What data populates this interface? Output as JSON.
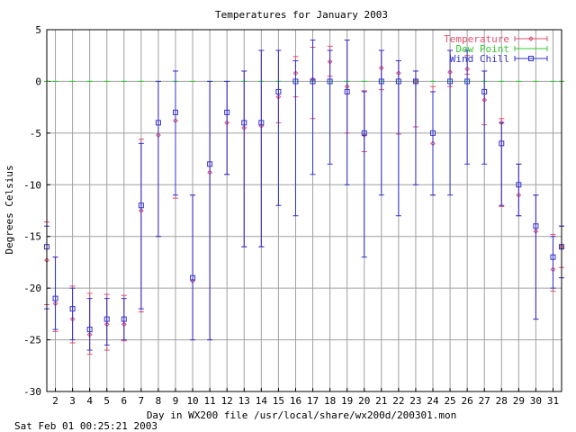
{
  "chart_data": {
    "type": "errorbar",
    "title": "Temperatures for January 2003",
    "xlabel": "Day in WX200 file /usr/local/share/wx200d/200301.mon",
    "ylabel": "Degrees Celsius",
    "footer": "Sat Feb 01 00:25:21 2003",
    "xlim": [
      1.5,
      31.5
    ],
    "ylim": [
      -30,
      5
    ],
    "x_ticks": [
      2,
      3,
      4,
      5,
      6,
      7,
      8,
      9,
      10,
      11,
      12,
      13,
      14,
      15,
      16,
      17,
      18,
      19,
      20,
      21,
      22,
      23,
      24,
      25,
      26,
      27,
      28,
      29,
      30,
      31
    ],
    "y_ticks": [
      5,
      0,
      -5,
      -10,
      -15,
      -20,
      -25,
      -30
    ],
    "grid": true,
    "legend_position": "top-right",
    "colors": {
      "temperature": "#e0506e",
      "dew_point": "#33cc33",
      "wind_chill": "#3333cc",
      "grid": "#a0a0a0"
    },
    "series": [
      {
        "name": "Temperature",
        "x": [
          1.5,
          2,
          3,
          4,
          5,
          6,
          7,
          8,
          9,
          10,
          11,
          12,
          13,
          14,
          15,
          16,
          17,
          18,
          19,
          20,
          21,
          22,
          23,
          24,
          25,
          26,
          27,
          28,
          29,
          30,
          31,
          31.5
        ],
        "low": [
          -21.6,
          -24.2,
          -25.3,
          -26.4,
          -26.0,
          -25.1,
          -22.3,
          -15.0,
          -11.3,
          -25.0,
          -25.0,
          -9.0,
          -16.0,
          -16.0,
          -4.0,
          -1.5,
          -3.6,
          0.5,
          -5.0,
          -6.8,
          -0.8,
          -5.1,
          -4.4,
          -11.0,
          -0.5,
          0.7,
          -4.2,
          -12.1,
          -13.0,
          -23.0,
          -20.3,
          -18.0
        ],
        "mid": [
          -17.3,
          -21.5,
          -23.0,
          -24.5,
          -23.5,
          -23.5,
          -12.5,
          -5.2,
          -3.8,
          -19.3,
          -8.8,
          -4.0,
          -4.5,
          -4.3,
          -1.5,
          0.8,
          0.2,
          1.9,
          -0.5,
          -5.2,
          1.3,
          0.8,
          0.0,
          -6.0,
          0.9,
          1.2,
          -1.8,
          -4.0,
          -11.0,
          -14.5,
          -18.2,
          -16.0
        ],
        "high": [
          -13.6,
          -17.0,
          -19.8,
          -20.5,
          -20.6,
          -20.7,
          -5.6,
          0.0,
          1.0,
          -11.0,
          0.0,
          0.0,
          1.0,
          3.0,
          3.0,
          2.4,
          3.3,
          3.4,
          4.0,
          -0.9,
          3.0,
          2.0,
          1.0,
          -0.5,
          3.0,
          2.5,
          1.0,
          -3.6,
          -8.0,
          -11.0,
          -14.8,
          -14.0
        ]
      },
      {
        "name": "Dew Point",
        "x": [
          1.5,
          2,
          3,
          4,
          5,
          6,
          7,
          8,
          9,
          10,
          11,
          12,
          13,
          14,
          15,
          16,
          17,
          18,
          19,
          20,
          21,
          22,
          23,
          24,
          25,
          26,
          27,
          28,
          29,
          30,
          31,
          31.5
        ],
        "low": [
          0,
          0,
          0,
          0,
          0,
          0,
          0,
          0,
          0,
          0,
          0,
          0,
          0,
          0,
          0,
          0,
          0,
          0,
          0,
          0,
          0,
          0,
          0,
          0,
          0,
          0,
          0,
          0,
          0,
          0,
          0,
          0
        ],
        "mid": [
          0,
          0,
          0,
          0,
          0,
          0,
          0,
          0,
          0,
          0,
          0,
          0,
          0,
          0,
          0,
          0,
          0,
          0,
          0,
          0,
          0,
          0,
          0,
          0,
          0,
          0,
          0,
          0,
          0,
          0,
          0,
          0
        ],
        "high": [
          0,
          0,
          0,
          0,
          0,
          0,
          0,
          0,
          0,
          0,
          0,
          0,
          0,
          0,
          0,
          0,
          0,
          0,
          0,
          0,
          0,
          0,
          0,
          0,
          0,
          0,
          0,
          0,
          0,
          0,
          0,
          0
        ]
      },
      {
        "name": "Wind Chill",
        "x": [
          1.5,
          2,
          3,
          4,
          5,
          6,
          7,
          8,
          9,
          10,
          11,
          12,
          13,
          14,
          15,
          16,
          17,
          18,
          19,
          20,
          21,
          22,
          23,
          24,
          25,
          26,
          27,
          28,
          29,
          30,
          31,
          31.5
        ],
        "low": [
          -22.0,
          -24.0,
          -25.0,
          -26.0,
          -25.5,
          -25.0,
          -22.0,
          -15.0,
          -11.0,
          -25.0,
          -25.0,
          -9.0,
          -16.0,
          -16.0,
          -12.0,
          -13.0,
          -9.0,
          -8.0,
          -10.0,
          -17.0,
          -11.0,
          -13.0,
          -10.0,
          -11.0,
          -11.0,
          -8.0,
          -8.0,
          -12.0,
          -13.0,
          -23.0,
          -20.0,
          -19.0
        ],
        "mid": [
          -16.0,
          -21.0,
          -22.0,
          -24.0,
          -23.0,
          -23.0,
          -12.0,
          -4.0,
          -3.0,
          -19.0,
          -8.0,
          -3.0,
          -4.0,
          -4.0,
          -1.0,
          0.0,
          0.0,
          0.0,
          -1.0,
          -5.0,
          0.0,
          0.0,
          0.0,
          -5.0,
          0.0,
          0.0,
          -1.0,
          -6.0,
          -10.0,
          -14.0,
          -17.0,
          -16.0
        ],
        "high": [
          -14.0,
          -17.0,
          -20.0,
          -21.0,
          -21.0,
          -21.0,
          -6.0,
          0.0,
          1.0,
          -11.0,
          0.0,
          0.0,
          1.0,
          3.0,
          3.0,
          2.0,
          4.0,
          3.0,
          4.0,
          -1.0,
          3.0,
          2.0,
          1.0,
          -1.0,
          3.0,
          3.0,
          1.0,
          -4.0,
          -8.0,
          -11.0,
          -15.0,
          -14.0
        ]
      }
    ]
  }
}
